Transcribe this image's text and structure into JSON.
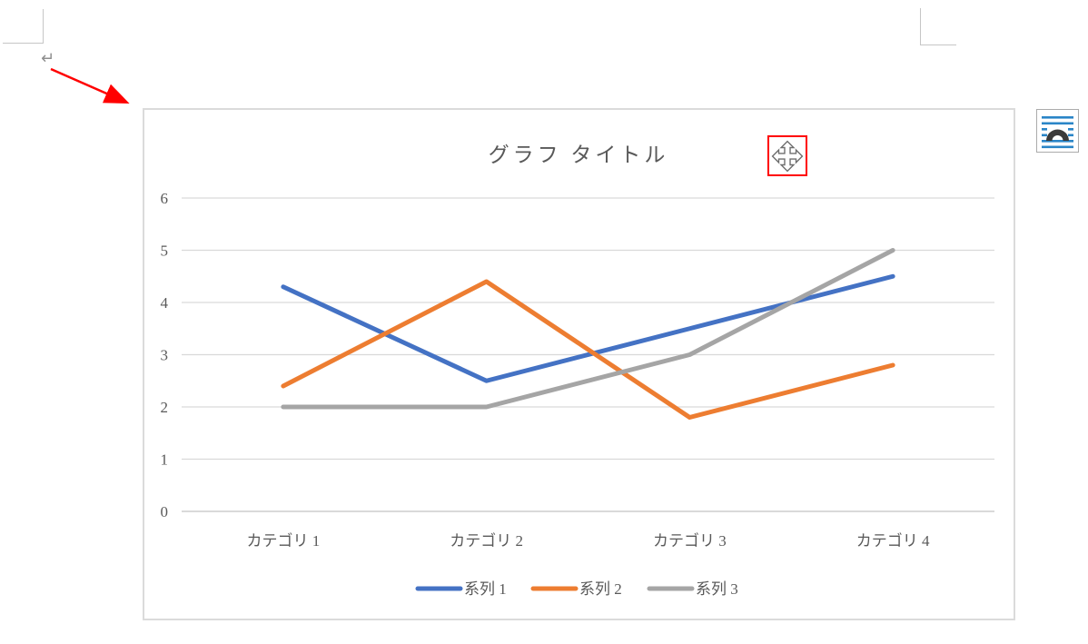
{
  "document": {
    "paragraph_mark": "↵"
  },
  "annotations": {
    "arrow_color": "#ff0000",
    "move_box_color": "#ff0000"
  },
  "chart_data": {
    "type": "line",
    "title": "グラフ タイトル",
    "categories": [
      "カテゴリ 1",
      "カテゴリ 2",
      "カテゴリ 3",
      "カテゴリ 4"
    ],
    "series": [
      {
        "name": "系列 1",
        "color": "#4472C4",
        "values": [
          4.3,
          2.5,
          3.5,
          4.5
        ]
      },
      {
        "name": "系列 2",
        "color": "#ED7D31",
        "values": [
          2.4,
          4.4,
          1.8,
          2.8
        ]
      },
      {
        "name": "系列 3",
        "color": "#A5A5A5",
        "values": [
          2.0,
          2.0,
          3.0,
          5.0
        ]
      }
    ],
    "y_axis": {
      "min": 0,
      "max": 6,
      "step": 1,
      "tick_labels": [
        "0",
        "1",
        "2",
        "3",
        "4",
        "5",
        "6"
      ]
    },
    "grid": true,
    "legend_position": "bottom",
    "gridline_color": "#d9d9d9",
    "axis_line_color": "#c3c3c3",
    "text_color": "#595959"
  }
}
